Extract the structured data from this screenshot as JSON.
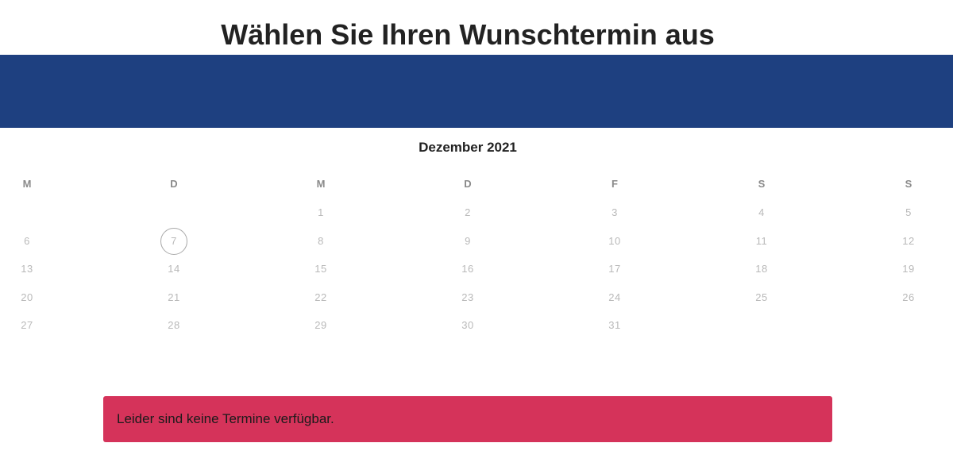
{
  "header": {
    "title": "Wählen Sie Ihren Wunschtermin aus"
  },
  "calendar": {
    "month_label": "Dezember 2021",
    "weekdays": [
      "M",
      "D",
      "M",
      "D",
      "F",
      "S",
      "S"
    ],
    "weeks": [
      [
        "",
        "",
        "1",
        "2",
        "3",
        "4",
        "5"
      ],
      [
        "6",
        "7",
        "8",
        "9",
        "10",
        "11",
        "12"
      ],
      [
        "13",
        "14",
        "15",
        "16",
        "17",
        "18",
        "19"
      ],
      [
        "20",
        "21",
        "22",
        "23",
        "24",
        "25",
        "26"
      ],
      [
        "27",
        "28",
        "29",
        "30",
        "31",
        "",
        ""
      ]
    ],
    "today": "7"
  },
  "alert": {
    "message": "Leider sind keine Termine verfügbar."
  },
  "colors": {
    "banner": "#1e4080",
    "alert_background": "#d5335a",
    "title_text": "#222222",
    "weekday_text": "#8a8a8a",
    "day_text": "#b9b9b9"
  }
}
